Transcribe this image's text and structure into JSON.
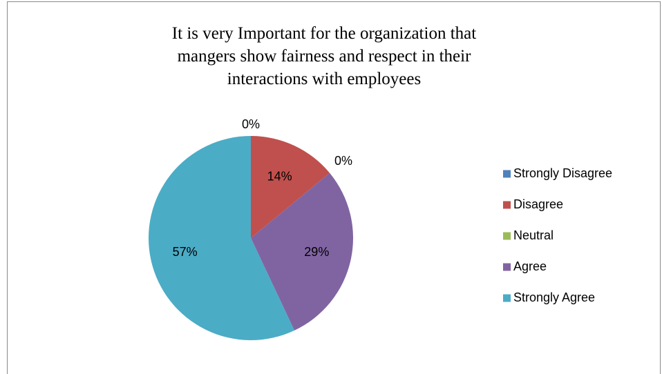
{
  "chart_data": {
    "type": "pie",
    "title": "It is very Important for the organization that mangers show fairness and respect in their interactions with employees",
    "categories": [
      "Strongly Disagree",
      "Disagree",
      "Neutral",
      "Agree",
      "Strongly Agree"
    ],
    "values": [
      0,
      14,
      0,
      29,
      57
    ],
    "value_labels": [
      "0%",
      "14%",
      "0%",
      "29%",
      "57%"
    ],
    "colors": [
      "#4f81bd",
      "#c0504d",
      "#9bbb59",
      "#8064a2",
      "#4bacc6"
    ],
    "legend": "right"
  }
}
